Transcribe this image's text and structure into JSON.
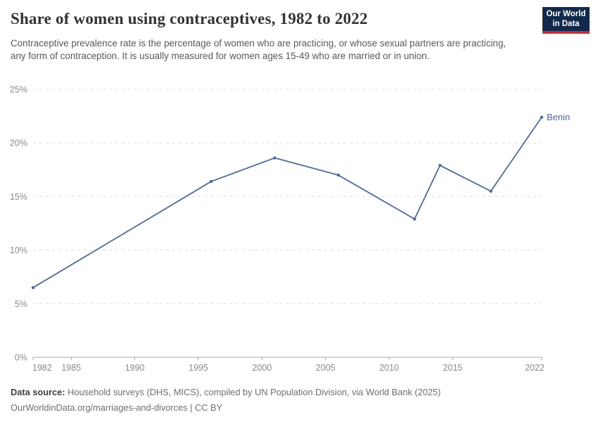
{
  "header": {
    "title": "Share of women using contraceptives, 1982 to 2022",
    "subtitle": "Contraceptive prevalence rate is the percentage of women who are practicing, or whose sexual partners are practicing, any form of contraception. It is usually measured for women ages 15-49 who are married or in union.",
    "logo": {
      "line1": "Our World",
      "line2": "in Data",
      "bg_color": "#12294e",
      "accent_color": "#c0303a",
      "text_color": "#ffffff"
    }
  },
  "chart_data": {
    "type": "line",
    "title": "Share of women using contraceptives, 1982 to 2022",
    "xlabel": "",
    "ylabel": "",
    "x": [
      1982,
      1996,
      2001,
      2006,
      2012,
      2014,
      2018,
      2022
    ],
    "series": [
      {
        "name": "Benin",
        "color": "#4c6a9c",
        "values": [
          6.5,
          16.4,
          18.6,
          17.0,
          12.9,
          17.9,
          15.5,
          22.4
        ]
      }
    ],
    "xlim": [
      1982,
      2022
    ],
    "ylim": [
      0,
      25
    ],
    "x_ticks": [
      {
        "value": 1982,
        "label": "1982"
      },
      {
        "value": 1985,
        "label": "1985"
      },
      {
        "value": 1990,
        "label": "1990"
      },
      {
        "value": 1995,
        "label": "1995"
      },
      {
        "value": 2000,
        "label": "2000"
      },
      {
        "value": 2005,
        "label": "2005"
      },
      {
        "value": 2010,
        "label": "2010"
      },
      {
        "value": 2015,
        "label": "2015"
      },
      {
        "value": 2022,
        "label": "2022"
      }
    ],
    "y_ticks": [
      {
        "value": 0,
        "label": "0%"
      },
      {
        "value": 5,
        "label": "5%"
      },
      {
        "value": 10,
        "label": "10%"
      },
      {
        "value": 15,
        "label": "15%"
      },
      {
        "value": 20,
        "label": "20%"
      },
      {
        "value": 25,
        "label": "25%"
      }
    ],
    "grid": "horizontal dashed",
    "legend": "line-end label",
    "point_markers": true
  },
  "footer": {
    "source_label": "Data source:",
    "source_text": "Household surveys (DHS, MICS), compiled by UN Population Division, via World Bank (2025)",
    "citation": "OurWorldinData.org/marriages-and-divorces | CC BY"
  }
}
